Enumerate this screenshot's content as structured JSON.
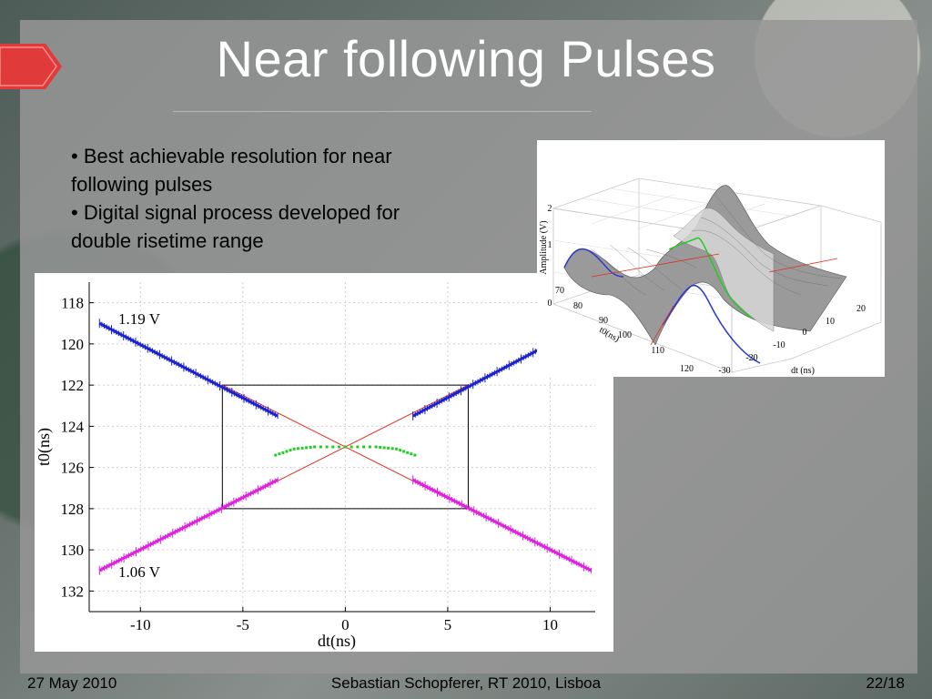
{
  "slide": {
    "title": "Near following Pulses",
    "bullets": [
      "• Best achievable resolution for near following pulses",
      "• Digital signal process developed for double risetime range"
    ]
  },
  "footer": {
    "date": "27 May 2010",
    "author": "Sebastian Schopferer, RT 2010, Lisboa",
    "page": "22/18"
  },
  "chart_data": [
    {
      "type": "scatter",
      "xlabel": "dt(ns)",
      "ylabel": "t0(ns)",
      "x_ticks": [
        -10,
        -5,
        0,
        5,
        10
      ],
      "y_ticks": [
        118,
        120,
        122,
        124,
        126,
        128,
        130,
        132
      ],
      "xlim": [
        -12.5,
        12.2
      ],
      "ylim": [
        133,
        117
      ],
      "grid": true,
      "annotations": [
        "1.19 V",
        "1.06 V"
      ],
      "series": [
        {
          "name": "1.19 V",
          "color": "#1a22d0",
          "segments": [
            [
              [
                -12,
                119
              ],
              [
                -3.3,
                123.5
              ]
            ],
            [
              [
                3.3,
                123.5
              ],
              [
                9.4,
                120.3
              ]
            ]
          ]
        },
        {
          "name": "1.06 V",
          "color": "#e020e0",
          "segments": [
            [
              [
                -12,
                131
              ],
              [
                -3.3,
                126.6
              ]
            ],
            [
              [
                3.3,
                126.6
              ],
              [
                12,
                131
              ]
            ]
          ]
        },
        {
          "name": "",
          "color": "#22cc22",
          "points": [
            [
              -3.4,
              125.4
            ],
            [
              -2.5,
              125.1
            ],
            [
              -1.5,
              125.0
            ],
            [
              0,
              125.0
            ],
            [
              1.5,
              125.0
            ],
            [
              2.5,
              125.1
            ],
            [
              3.4,
              125.4
            ]
          ]
        }
      ],
      "lines": [
        {
          "color": "#e03020",
          "from": [
            -6,
            122
          ],
          "to": [
            6,
            128
          ]
        },
        {
          "color": "#e03020",
          "from": [
            -6,
            128
          ],
          "to": [
            6,
            122
          ]
        }
      ],
      "box": {
        "x": [
          -6,
          6
        ],
        "y": [
          122,
          128
        ]
      }
    },
    {
      "type": "surface",
      "xlabel": "dt (ns)",
      "ylabel": "t0(ns)",
      "zlabel": "Amplitude (V)",
      "x_ticks": [
        -30,
        -20,
        -10,
        0,
        10,
        20
      ],
      "y_ticks": [
        70,
        80,
        90,
        100,
        110,
        120
      ],
      "z_ticks": [
        0,
        1,
        2
      ]
    }
  ],
  "colors": {
    "accent": "#e03a3a",
    "title": "#ffffff"
  }
}
